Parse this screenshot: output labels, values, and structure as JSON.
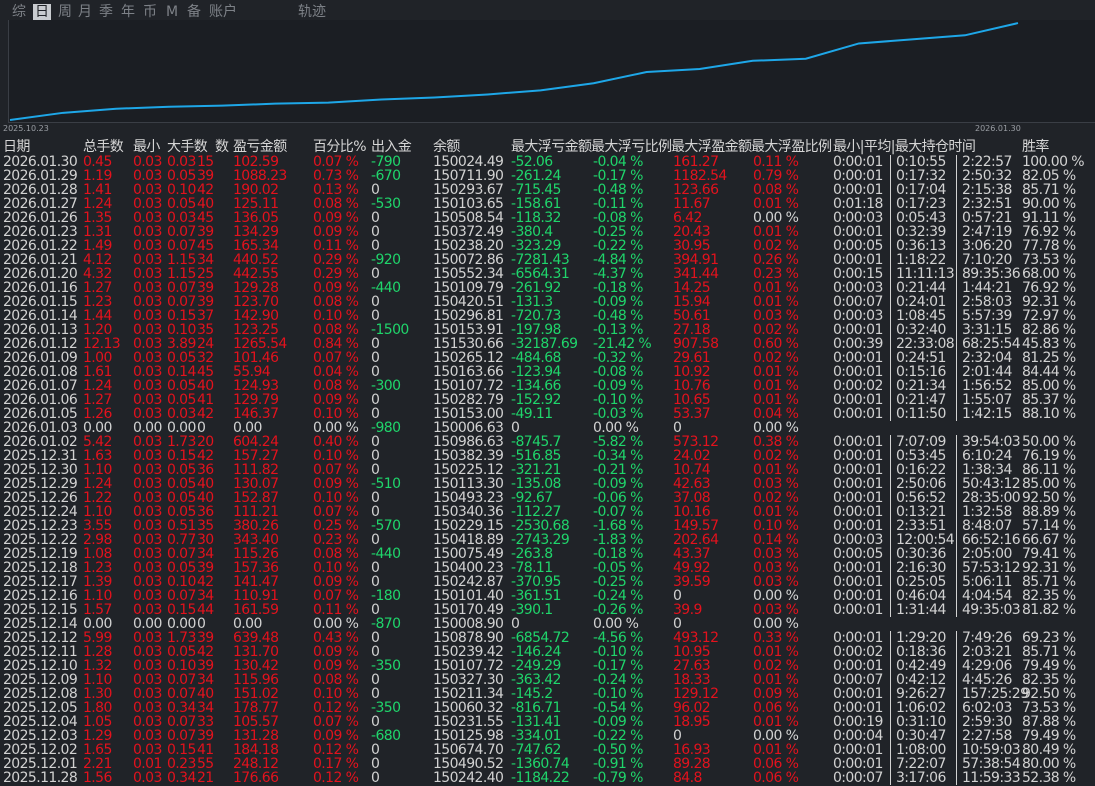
{
  "tabs": [
    "综",
    "日",
    "周",
    "月",
    "季",
    "年",
    "币",
    "M",
    "备",
    "账户"
  ],
  "trajectory_tab": "轨迹",
  "chart_data": {
    "type": "line",
    "color": "#1ea7e8",
    "ylim": [
      0,
      100
    ],
    "categories": [
      "2025.10.23",
      null,
      null,
      null,
      null,
      null,
      null,
      null,
      null,
      null,
      null,
      null,
      null,
      null,
      null,
      null,
      null,
      null,
      null,
      "2026.01.30"
    ],
    "values": [
      2,
      9,
      13,
      15,
      16,
      18,
      19,
      22,
      24,
      27,
      31,
      38,
      49,
      52,
      60,
      62,
      77,
      81,
      85,
      97
    ]
  },
  "table": {
    "headers": [
      "日期",
      "总手数",
      "最小",
      "大手数",
      "数",
      "盈亏金额",
      "百分比%",
      "出入金",
      "余额",
      "最大浮亏金额",
      "最大浮亏比例",
      "最大浮盈金额",
      "最大浮盈比例",
      "最小|平均|最大持仓时间",
      "胜率"
    ],
    "rows": [
      [
        "2026.01.30",
        "0.45",
        "0.03",
        "0.03",
        "15",
        "102.59",
        "0.07 %",
        "-790",
        "150024.49",
        "-52.06",
        "-0.04 %",
        "161.27",
        "0.11 %",
        "0:00:01",
        "0:10:55",
        "2:22:57",
        "100.00 %"
      ],
      [
        "2026.01.29",
        "1.19",
        "0.03",
        "0.05",
        "39",
        "1088.23",
        "0.73 %",
        "-670",
        "150711.90",
        "-261.24",
        "-0.17 %",
        "1182.54",
        "0.79 %",
        "0:00:01",
        "0:17:32",
        "2:50:32",
        "82.05 %"
      ],
      [
        "2026.01.28",
        "1.41",
        "0.03",
        "0.10",
        "42",
        "190.02",
        "0.13 %",
        "0",
        "150293.67",
        "-715.45",
        "-0.48 %",
        "123.66",
        "0.08 %",
        "0:00:01",
        "0:17:04",
        "2:15:38",
        "85.71 %"
      ],
      [
        "2026.01.27",
        "1.24",
        "0.03",
        "0.05",
        "40",
        "125.11",
        "0.08 %",
        "-530",
        "150103.65",
        "-158.61",
        "-0.11 %",
        "11.67",
        "0.01 %",
        "0:01:18",
        "0:17:23",
        "2:32:51",
        "90.00 %"
      ],
      [
        "2026.01.26",
        "1.35",
        "0.03",
        "0.03",
        "45",
        "136.05",
        "0.09 %",
        "0",
        "150508.54",
        "-118.32",
        "-0.08 %",
        "6.42",
        "0.00 %",
        "0:00:03",
        "0:05:43",
        "0:57:21",
        "91.11 %"
      ],
      [
        "2026.01.23",
        "1.31",
        "0.03",
        "0.07",
        "39",
        "134.29",
        "0.09 %",
        "0",
        "150372.49",
        "-380.4",
        "-0.25 %",
        "20.43",
        "0.01 %",
        "0:00:01",
        "0:32:39",
        "2:47:19",
        "76.92 %"
      ],
      [
        "2026.01.22",
        "1.49",
        "0.03",
        "0.07",
        "45",
        "165.34",
        "0.11 %",
        "0",
        "150238.20",
        "-323.29",
        "-0.22 %",
        "30.95",
        "0.02 %",
        "0:00:05",
        "0:36:13",
        "3:06:20",
        "77.78 %"
      ],
      [
        "2026.01.21",
        "4.12",
        "0.03",
        "1.15",
        "34",
        "440.52",
        "0.29 %",
        "-920",
        "150072.86",
        "-7281.43",
        "-4.84 %",
        "394.91",
        "0.26 %",
        "0:00:01",
        "1:18:22",
        "7:10:20",
        "73.53 %"
      ],
      [
        "2026.01.20",
        "4.32",
        "0.03",
        "1.15",
        "25",
        "442.55",
        "0.29 %",
        "0",
        "150552.34",
        "-6564.31",
        "-4.37 %",
        "341.44",
        "0.23 %",
        "0:00:15",
        "11:11:13",
        "89:35:36",
        "68.00 %"
      ],
      [
        "2026.01.16",
        "1.27",
        "0.03",
        "0.07",
        "39",
        "129.28",
        "0.09 %",
        "-440",
        "150109.79",
        "-261.92",
        "-0.18 %",
        "14.25",
        "0.01 %",
        "0:00:03",
        "0:21:44",
        "1:44:21",
        "76.92 %"
      ],
      [
        "2026.01.15",
        "1.23",
        "0.03",
        "0.07",
        "39",
        "123.70",
        "0.08 %",
        "0",
        "150420.51",
        "-131.3",
        "-0.09 %",
        "15.94",
        "0.01 %",
        "0:00:07",
        "0:24:01",
        "2:58:03",
        "92.31 %"
      ],
      [
        "2026.01.14",
        "1.44",
        "0.03",
        "0.15",
        "37",
        "142.90",
        "0.10 %",
        "0",
        "150296.81",
        "-720.73",
        "-0.48 %",
        "50.61",
        "0.03 %",
        "0:00:03",
        "1:08:45",
        "5:57:39",
        "72.97 %"
      ],
      [
        "2026.01.13",
        "1.20",
        "0.03",
        "0.10",
        "35",
        "123.25",
        "0.08 %",
        "-1500",
        "150153.91",
        "-197.98",
        "-0.13 %",
        "27.18",
        "0.02 %",
        "0:00:01",
        "0:32:40",
        "3:31:15",
        "82.86 %"
      ],
      [
        "2026.01.12",
        "12.13",
        "0.03",
        "3.89",
        "24",
        "1265.54",
        "0.84 %",
        "0",
        "151530.66",
        "-32187.69",
        "-21.42 %",
        "907.58",
        "0.60 %",
        "0:00:39",
        "22:33:08",
        "68:25:54",
        "45.83 %"
      ],
      [
        "2026.01.09",
        "1.00",
        "0.03",
        "0.05",
        "32",
        "101.46",
        "0.07 %",
        "0",
        "150265.12",
        "-484.68",
        "-0.32 %",
        "29.61",
        "0.02 %",
        "0:00:01",
        "0:24:51",
        "2:32:04",
        "81.25 %"
      ],
      [
        "2026.01.08",
        "1.61",
        "0.03",
        "0.14",
        "45",
        "55.94",
        "0.04 %",
        "0",
        "150163.66",
        "-123.94",
        "-0.08 %",
        "10.92",
        "0.01 %",
        "0:00:01",
        "0:15:16",
        "2:01:44",
        "84.44 %"
      ],
      [
        "2026.01.07",
        "1.24",
        "0.03",
        "0.05",
        "40",
        "124.93",
        "0.08 %",
        "-300",
        "150107.72",
        "-134.66",
        "-0.09 %",
        "10.76",
        "0.01 %",
        "0:00:02",
        "0:21:34",
        "1:56:52",
        "85.00 %"
      ],
      [
        "2026.01.06",
        "1.27",
        "0.03",
        "0.05",
        "41",
        "129.79",
        "0.09 %",
        "0",
        "150282.79",
        "-152.92",
        "-0.10 %",
        "10.65",
        "0.01 %",
        "0:00:01",
        "0:21:47",
        "1:55:07",
        "85.37 %"
      ],
      [
        "2026.01.05",
        "1.26",
        "0.03",
        "0.03",
        "42",
        "146.37",
        "0.10 %",
        "0",
        "150153.00",
        "-49.11",
        "-0.03 %",
        "53.37",
        "0.04 %",
        "0:00:01",
        "0:11:50",
        "1:42:15",
        "88.10 %"
      ],
      [
        "2026.01.03",
        "0.00",
        "0.00",
        "0.00",
        "0",
        "0.00",
        "0.00 %",
        "-980",
        "150006.63",
        "0",
        "0.00 %",
        "0",
        "0.00 %",
        null,
        null,
        null,
        null
      ],
      [
        "2026.01.02",
        "5.42",
        "0.03",
        "1.73",
        "20",
        "604.24",
        "0.40 %",
        "0",
        "150986.63",
        "-8745.7",
        "-5.82 %",
        "573.12",
        "0.38 %",
        "0:00:01",
        "7:07:09",
        "39:54:03",
        "50.00 %"
      ],
      [
        "2025.12.31",
        "1.63",
        "0.03",
        "0.15",
        "42",
        "157.27",
        "0.10 %",
        "0",
        "150382.39",
        "-516.85",
        "-0.34 %",
        "24.02",
        "0.02 %",
        "0:00:01",
        "0:53:45",
        "6:10:24",
        "76.19 %"
      ],
      [
        "2025.12.30",
        "1.10",
        "0.03",
        "0.05",
        "36",
        "111.82",
        "0.07 %",
        "0",
        "150225.12",
        "-321.21",
        "-0.21 %",
        "10.74",
        "0.01 %",
        "0:00:01",
        "0:16:22",
        "1:38:34",
        "86.11 %"
      ],
      [
        "2025.12.29",
        "1.24",
        "0.03",
        "0.05",
        "40",
        "130.07",
        "0.09 %",
        "-510",
        "150113.30",
        "-135.08",
        "-0.09 %",
        "42.63",
        "0.03 %",
        "0:00:01",
        "2:50:06",
        "50:43:12",
        "85.00 %"
      ],
      [
        "2025.12.26",
        "1.22",
        "0.03",
        "0.05",
        "40",
        "152.87",
        "0.10 %",
        "0",
        "150493.23",
        "-92.67",
        "-0.06 %",
        "37.08",
        "0.02 %",
        "0:00:01",
        "0:56:52",
        "28:35:00",
        "92.50 %"
      ],
      [
        "2025.12.24",
        "1.10",
        "0.03",
        "0.05",
        "36",
        "111.21",
        "0.07 %",
        "0",
        "150340.36",
        "-112.27",
        "-0.07 %",
        "10.16",
        "0.01 %",
        "0:00:01",
        "0:13:21",
        "1:32:58",
        "88.89 %"
      ],
      [
        "2025.12.23",
        "3.55",
        "0.03",
        "0.51",
        "35",
        "380.26",
        "0.25 %",
        "-570",
        "150229.15",
        "-2530.68",
        "-1.68 %",
        "149.57",
        "0.10 %",
        "0:00:01",
        "2:33:51",
        "8:48:07",
        "57.14 %"
      ],
      [
        "2025.12.22",
        "2.98",
        "0.03",
        "0.77",
        "30",
        "343.40",
        "0.23 %",
        "0",
        "150418.89",
        "-2743.29",
        "-1.83 %",
        "202.64",
        "0.14 %",
        "0:00:03",
        "12:00:54",
        "66:52:16",
        "66.67 %"
      ],
      [
        "2025.12.19",
        "1.08",
        "0.03",
        "0.07",
        "34",
        "115.26",
        "0.08 %",
        "-440",
        "150075.49",
        "-263.8",
        "-0.18 %",
        "43.37",
        "0.03 %",
        "0:00:05",
        "0:30:36",
        "2:05:00",
        "79.41 %"
      ],
      [
        "2025.12.18",
        "1.23",
        "0.03",
        "0.05",
        "39",
        "157.36",
        "0.10 %",
        "0",
        "150400.23",
        "-78.11",
        "-0.05 %",
        "49.92",
        "0.03 %",
        "0:00:01",
        "2:16:30",
        "57:53:12",
        "92.31 %"
      ],
      [
        "2025.12.17",
        "1.39",
        "0.03",
        "0.10",
        "42",
        "141.47",
        "0.09 %",
        "0",
        "150242.87",
        "-370.95",
        "-0.25 %",
        "39.59",
        "0.03 %",
        "0:00:01",
        "0:25:05",
        "5:06:11",
        "85.71 %"
      ],
      [
        "2025.12.16",
        "1.10",
        "0.03",
        "0.07",
        "34",
        "110.91",
        "0.07 %",
        "-180",
        "150101.40",
        "-361.51",
        "-0.24 %",
        "0",
        "0.00 %",
        "0:00:01",
        "0:46:04",
        "4:04:54",
        "82.35 %"
      ],
      [
        "2025.12.15",
        "1.57",
        "0.03",
        "0.15",
        "44",
        "161.59",
        "0.11 %",
        "0",
        "150170.49",
        "-390.1",
        "-0.26 %",
        "39.9",
        "0.03 %",
        "0:00:01",
        "1:31:44",
        "49:35:03",
        "81.82 %"
      ],
      [
        "2025.12.14",
        "0.00",
        "0.00",
        "0.00",
        "0",
        "0.00",
        "0.00 %",
        "-870",
        "150008.90",
        "0",
        "0.00 %",
        "0",
        "0.00 %",
        null,
        null,
        null,
        null
      ],
      [
        "2025.12.12",
        "5.99",
        "0.03",
        "1.73",
        "39",
        "639.48",
        "0.43 %",
        "0",
        "150878.90",
        "-6854.72",
        "-4.56 %",
        "493.12",
        "0.33 %",
        "0:00:01",
        "1:29:20",
        "7:49:26",
        "69.23 %"
      ],
      [
        "2025.12.11",
        "1.28",
        "0.03",
        "0.05",
        "42",
        "131.70",
        "0.09 %",
        "0",
        "150239.42",
        "-146.24",
        "-0.10 %",
        "10.95",
        "0.01 %",
        "0:00:02",
        "0:18:36",
        "2:03:21",
        "85.71 %"
      ],
      [
        "2025.12.10",
        "1.32",
        "0.03",
        "0.10",
        "39",
        "130.42",
        "0.09 %",
        "-350",
        "150107.72",
        "-249.29",
        "-0.17 %",
        "27.63",
        "0.02 %",
        "0:00:01",
        "0:42:49",
        "4:29:06",
        "79.49 %"
      ],
      [
        "2025.12.09",
        "1.10",
        "0.03",
        "0.07",
        "34",
        "115.96",
        "0.08 %",
        "0",
        "150327.30",
        "-363.42",
        "-0.24 %",
        "18.33",
        "0.01 %",
        "0:00:07",
        "0:42:12",
        "4:45:26",
        "82.35 %"
      ],
      [
        "2025.12.08",
        "1.30",
        "0.03",
        "0.07",
        "40",
        "151.02",
        "0.10 %",
        "0",
        "150211.34",
        "-145.2",
        "-0.10 %",
        "129.12",
        "0.09 %",
        "0:00:01",
        "9:26:27",
        "157:25:29",
        "92.50 %"
      ],
      [
        "2025.12.05",
        "1.80",
        "0.03",
        "0.34",
        "34",
        "178.77",
        "0.12 %",
        "-350",
        "150060.32",
        "-816.71",
        "-0.54 %",
        "96.02",
        "0.06 %",
        "0:00:01",
        "1:06:02",
        "6:02:03",
        "73.53 %"
      ],
      [
        "2025.12.04",
        "1.05",
        "0.03",
        "0.07",
        "33",
        "105.57",
        "0.07 %",
        "0",
        "150231.55",
        "-131.41",
        "-0.09 %",
        "18.95",
        "0.01 %",
        "0:00:19",
        "0:31:10",
        "2:59:30",
        "87.88 %"
      ],
      [
        "2025.12.03",
        "1.29",
        "0.03",
        "0.07",
        "39",
        "131.28",
        "0.09 %",
        "-680",
        "150125.98",
        "-334.01",
        "-0.22 %",
        "0",
        "0.00 %",
        "0:00:04",
        "0:30:47",
        "2:27:58",
        "79.49 %"
      ],
      [
        "2025.12.02",
        "1.65",
        "0.03",
        "0.15",
        "41",
        "184.18",
        "0.12 %",
        "0",
        "150674.70",
        "-747.62",
        "-0.50 %",
        "16.93",
        "0.01 %",
        "0:00:01",
        "1:08:00",
        "10:59:03",
        "80.49 %"
      ],
      [
        "2025.12.01",
        "2.21",
        "0.01",
        "0.23",
        "55",
        "248.12",
        "0.17 %",
        "0",
        "150490.52",
        "-1360.74",
        "-0.91 %",
        "89.28",
        "0.06 %",
        "0:00:01",
        "7:22:07",
        "57:38:54",
        "80.00 %"
      ],
      [
        "2025.11.28",
        "1.56",
        "0.03",
        "0.34",
        "21",
        "176.66",
        "0.12 %",
        "0",
        "150242.40",
        "-1184.22",
        "-0.79 %",
        "84.8",
        "0.06 %",
        "0:00:07",
        "3:17:06",
        "11:59:33",
        "52.38 %"
      ]
    ]
  }
}
